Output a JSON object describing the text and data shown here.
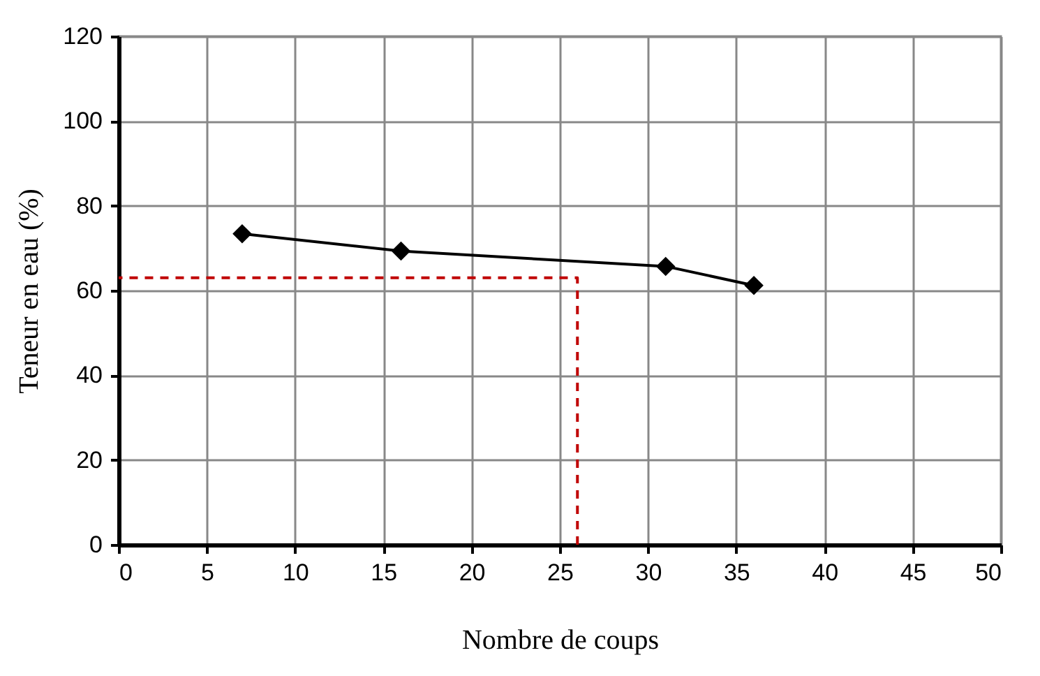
{
  "chart_data": {
    "type": "line",
    "xlabel": "Nombre de coups",
    "ylabel": "Teneur en eau (%)",
    "xlim": [
      0,
      50
    ],
    "xticks": [
      0,
      5,
      10,
      15,
      20,
      25,
      30,
      35,
      40,
      45,
      50
    ],
    "ylim": [
      0,
      120
    ],
    "yticks": [
      0,
      20,
      40,
      60,
      80,
      100,
      120
    ],
    "grid": true,
    "series": [
      {
        "color": "#000000",
        "x": [
          7,
          16,
          31,
          36
        ],
        "values": [
          73.4,
          69.3,
          65.7,
          61.2
        ],
        "marker": "diamond",
        "line_style": "solid"
      },
      {
        "color": "#c00000",
        "x": [
          26,
          26,
          0
        ],
        "values": [
          0,
          63,
          63
        ],
        "marker": "none",
        "line_style": "dashed"
      }
    ]
  }
}
